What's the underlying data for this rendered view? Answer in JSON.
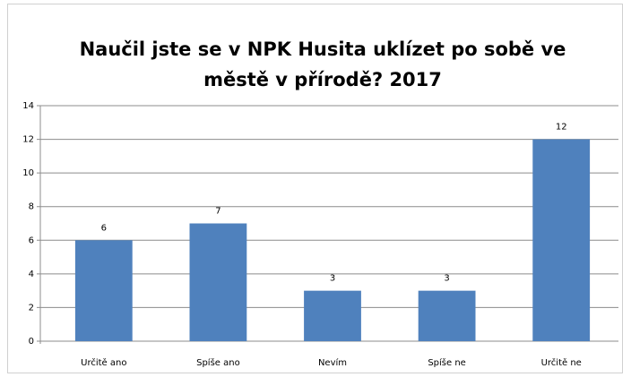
{
  "chart_data": {
    "type": "bar",
    "title": "Naučil jste se v NPK Husita uklízet po sobě ve městě v přírodě?  2017",
    "categories": [
      "Určitě ano",
      "Spíše ano",
      "Nevím",
      "Spíše ne",
      "Určitě ne"
    ],
    "values": [
      6,
      7,
      3,
      3,
      12
    ],
    "color": "#4f81bd",
    "ylim": [
      0,
      14
    ],
    "yticks": [
      0,
      2,
      4,
      6,
      8,
      10,
      12,
      14
    ],
    "grid": true
  }
}
